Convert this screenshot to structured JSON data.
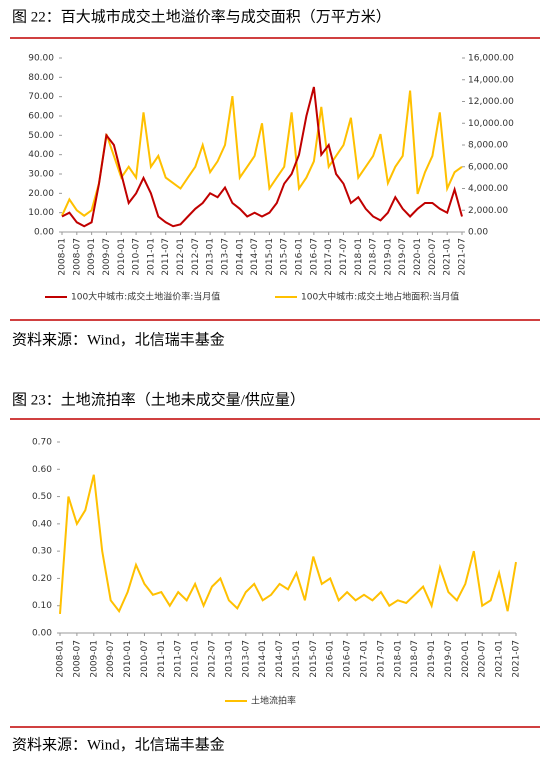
{
  "chart_data": [
    {
      "type": "line",
      "title": "图 22：百大城市成交土地溢价率与成交面积（万平方米）",
      "source": "资料来源：Wind，北信瑞丰基金",
      "categories": [
        "2008-01",
        null,
        "2008-07",
        null,
        "2009-01",
        null,
        "2009-07",
        null,
        "2010-01",
        null,
        "2010-07",
        null,
        "2011-01",
        null,
        "2011-07",
        null,
        "2012-01",
        null,
        "2012-07",
        null,
        "2013-01",
        null,
        "2013-07",
        null,
        "2014-01",
        null,
        "2014-07",
        null,
        "2015-01",
        null,
        "2015-07",
        null,
        "2016-01",
        null,
        "2016-07",
        null,
        "2017-01",
        null,
        "2017-07",
        null,
        "2018-01",
        null,
        "2018-07",
        null,
        "2019-01",
        null,
        "2019-07",
        null,
        "2020-01",
        null,
        "2020-07",
        null,
        "2021-01",
        null,
        "2021-07"
      ],
      "series": [
        {
          "name": "100大中城市:成交土地溢价率:当月值",
          "color": "#c00000",
          "values": [
            8,
            10,
            5,
            3,
            5,
            25,
            50,
            45,
            30,
            15,
            20,
            28,
            20,
            8,
            5,
            3,
            4,
            8,
            12,
            15,
            20,
            18,
            23,
            15,
            12,
            8,
            10,
            8,
            10,
            15,
            25,
            30,
            40,
            60,
            75,
            40,
            45,
            30,
            25,
            15,
            18,
            12,
            8,
            6,
            10,
            18,
            12,
            8,
            12,
            15,
            15,
            12,
            10,
            22,
            8
          ]
        },
        {
          "name": "100大中城市:成交土地占地面积:当月值",
          "color": "#ffc000",
          "axis": "y2",
          "values": [
            1500,
            3000,
            2000,
            1500,
            2000,
            4500,
            9000,
            7000,
            5000,
            6000,
            5000,
            11000,
            6000,
            7000,
            5000,
            4500,
            4000,
            5000,
            6000,
            8000,
            5500,
            6500,
            8000,
            12500,
            5000,
            6000,
            7000,
            10000,
            4000,
            5000,
            6000,
            11000,
            4000,
            5000,
            6500,
            11500,
            6000,
            7000,
            8000,
            10500,
            5000,
            6000,
            7000,
            9000,
            4500,
            6000,
            7000,
            13000,
            3500,
            5500,
            7000,
            11000,
            4000,
            5500,
            6000
          ]
        }
      ],
      "ylim": [
        0,
        90
      ],
      "yticks": [
        {
          "value": 0,
          "label": "0.00"
        },
        {
          "value": 10,
          "label": "10.00"
        },
        {
          "value": 20,
          "label": "20.00"
        },
        {
          "value": 30,
          "label": "30.00"
        },
        {
          "value": 40,
          "label": "40.00"
        },
        {
          "value": 50,
          "label": "50.00"
        },
        {
          "value": 60,
          "label": "60.00"
        },
        {
          "value": 70,
          "label": "70.00"
        },
        {
          "value": 80,
          "label": "80.00"
        },
        {
          "value": 90,
          "label": "90.00"
        }
      ],
      "y2lim": [
        0,
        16000
      ],
      "y2ticks": [
        {
          "value": 0,
          "label": "0.00"
        },
        {
          "value": 2000,
          "label": "2,000.00"
        },
        {
          "value": 4000,
          "label": "4,000.00"
        },
        {
          "value": 6000,
          "label": "6,000.00"
        },
        {
          "value": 8000,
          "label": "8,000.00"
        },
        {
          "value": 10000,
          "label": "10,000.00"
        },
        {
          "value": 12000,
          "label": "12,000.00"
        },
        {
          "value": 14000,
          "label": "14,000.00"
        },
        {
          "value": 16000,
          "label": "16,000.00"
        }
      ]
    },
    {
      "type": "line",
      "title": "图 23：土地流拍率（土地未成交量/供应量）",
      "source": "资料来源：Wind，北信瑞丰基金",
      "categories": [
        "2008-01",
        null,
        "2008-07",
        null,
        "2009-01",
        null,
        "2009-07",
        null,
        "2010-01",
        null,
        "2010-07",
        null,
        "2011-01",
        null,
        "2011-07",
        null,
        "2012-01",
        null,
        "2012-07",
        null,
        "2013-01",
        null,
        "2013-07",
        null,
        "2014-01",
        null,
        "2014-07",
        null,
        "2015-01",
        null,
        "2015-07",
        null,
        "2016-01",
        null,
        "2016-07",
        null,
        "2017-01",
        null,
        "2017-07",
        null,
        "2018-01",
        null,
        "2018-07",
        null,
        "2019-01",
        null,
        "2019-07",
        null,
        "2020-01",
        null,
        "2020-07",
        null,
        "2021-01",
        null,
        "2021-07"
      ],
      "series": [
        {
          "name": "土地流拍率",
          "color": "#ffc000",
          "values": [
            0.07,
            0.5,
            0.4,
            0.45,
            0.58,
            0.3,
            0.12,
            0.08,
            0.15,
            0.25,
            0.18,
            0.14,
            0.15,
            0.1,
            0.15,
            0.12,
            0.18,
            0.1,
            0.17,
            0.2,
            0.12,
            0.09,
            0.15,
            0.18,
            0.12,
            0.14,
            0.18,
            0.16,
            0.22,
            0.12,
            0.28,
            0.18,
            0.2,
            0.12,
            0.15,
            0.12,
            0.14,
            0.12,
            0.15,
            0.1,
            0.12,
            0.11,
            0.14,
            0.17,
            0.1,
            0.24,
            0.15,
            0.12,
            0.18,
            0.3,
            0.1,
            0.12,
            0.22,
            0.08,
            0.26
          ]
        }
      ],
      "ylim": [
        0,
        0.7
      ],
      "yticks": [
        {
          "value": 0,
          "label": "0.00"
        },
        {
          "value": 0.1,
          "label": "0.10"
        },
        {
          "value": 0.2,
          "label": "0.20"
        },
        {
          "value": 0.3,
          "label": "0.30"
        },
        {
          "value": 0.4,
          "label": "0.40"
        },
        {
          "value": 0.5,
          "label": "0.50"
        },
        {
          "value": 0.6,
          "label": "0.60"
        },
        {
          "value": 0.7,
          "label": "0.70"
        }
      ]
    }
  ]
}
